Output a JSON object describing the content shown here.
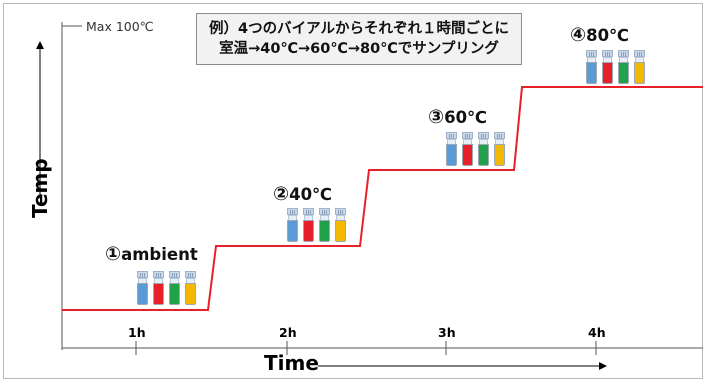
{
  "annotation": {
    "line1": "例）4つのバイアルからそれぞれ１時間ごとに",
    "line2": "室温→40℃→60℃→80℃でサンプリング"
  },
  "axes": {
    "y_label": "Temp",
    "x_label": "Time",
    "max_label": "Max 100℃",
    "ticks": [
      "1h",
      "2h",
      "3h",
      "4h"
    ]
  },
  "stages": [
    {
      "num": "①",
      "label": "ambient"
    },
    {
      "num": "②",
      "label": "40℃"
    },
    {
      "num": "③",
      "label": "60℃"
    },
    {
      "num": "④",
      "label": "80℃"
    }
  ],
  "vial_colors": [
    "#5b9bd5",
    "#e8202a",
    "#21a24a",
    "#f5b800"
  ],
  "line_color": "#e8202a"
}
